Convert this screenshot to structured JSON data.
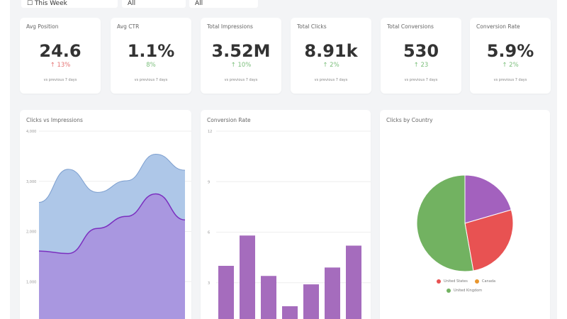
{
  "filters": [
    {
      "label": "This Week",
      "icon": "calendar-icon"
    },
    {
      "label": "All"
    },
    {
      "label": "All"
    }
  ],
  "kpis": [
    {
      "title": "Avg Position",
      "value": "24.6",
      "delta": "↑ 13%",
      "trend": "bad",
      "note": "vs previous 7 days"
    },
    {
      "title": "Avg CTR",
      "value": "1.1%",
      "delta": "8%",
      "trend": "good",
      "note": "vs previous 7 days"
    },
    {
      "title": "Total Impressions",
      "value": "3.52M",
      "delta": "↑ 10%",
      "trend": "good",
      "note": "vs previous 7 days"
    },
    {
      "title": "Total Clicks",
      "value": "8.91k",
      "delta": "↑ 2%",
      "trend": "good",
      "note": "vs previous 7 days"
    },
    {
      "title": "Total Conversions",
      "value": "530",
      "delta": "↑ 23",
      "trend": "good",
      "note": "vs previous 7 days"
    },
    {
      "title": "Conversion Rate",
      "value": "5.9%",
      "delta": "↑ 2%",
      "trend": "good",
      "note": "vs previous 7 days"
    }
  ],
  "colors": {
    "good": "#7cbf7c",
    "bad": "#e57373",
    "impressions": "#aec7e8",
    "clicks": "#a995df",
    "bar": "#a56cbd"
  },
  "chart_data": [
    {
      "type": "area",
      "title": "Clicks vs Impressions",
      "ylim": [
        0,
        4000
      ],
      "yticks": [
        "1,000",
        "2,000",
        "3,000",
        "4,000"
      ],
      "ytick_values": [
        1000,
        2000,
        3000,
        4000
      ],
      "grid": true,
      "series": [
        {
          "values": [
            2580,
            3240,
            2780,
            3010,
            3540,
            3220
          ],
          "color": "#aec7e8",
          "line": "#7d9fcf"
        },
        {
          "values": [
            1610,
            1560,
            2060,
            2300,
            2750,
            2230
          ],
          "color": "#a995df",
          "line": "#7b2fbf"
        }
      ]
    },
    {
      "type": "bar",
      "title": "Conversion Rate",
      "ylim": [
        0,
        12
      ],
      "yticks": [
        "3",
        "6",
        "9",
        "12"
      ],
      "ytick_values": [
        3,
        6,
        9,
        12
      ],
      "grid": true,
      "values": [
        4.0,
        5.8,
        3.4,
        1.6,
        2.9,
        3.9,
        5.2
      ]
    },
    {
      "type": "pie",
      "title": "Clicks by Country",
      "slices": [
        {
          "name": "",
          "value": 20.5,
          "color": "#a361be"
        },
        {
          "name": "United States",
          "value": 26.7,
          "color": "#e85252"
        },
        {
          "name": "Canada",
          "value": 0,
          "color": "#e8962e"
        },
        {
          "name": "United Kingdom",
          "value": 52.8,
          "color": "#72b261"
        }
      ]
    }
  ]
}
